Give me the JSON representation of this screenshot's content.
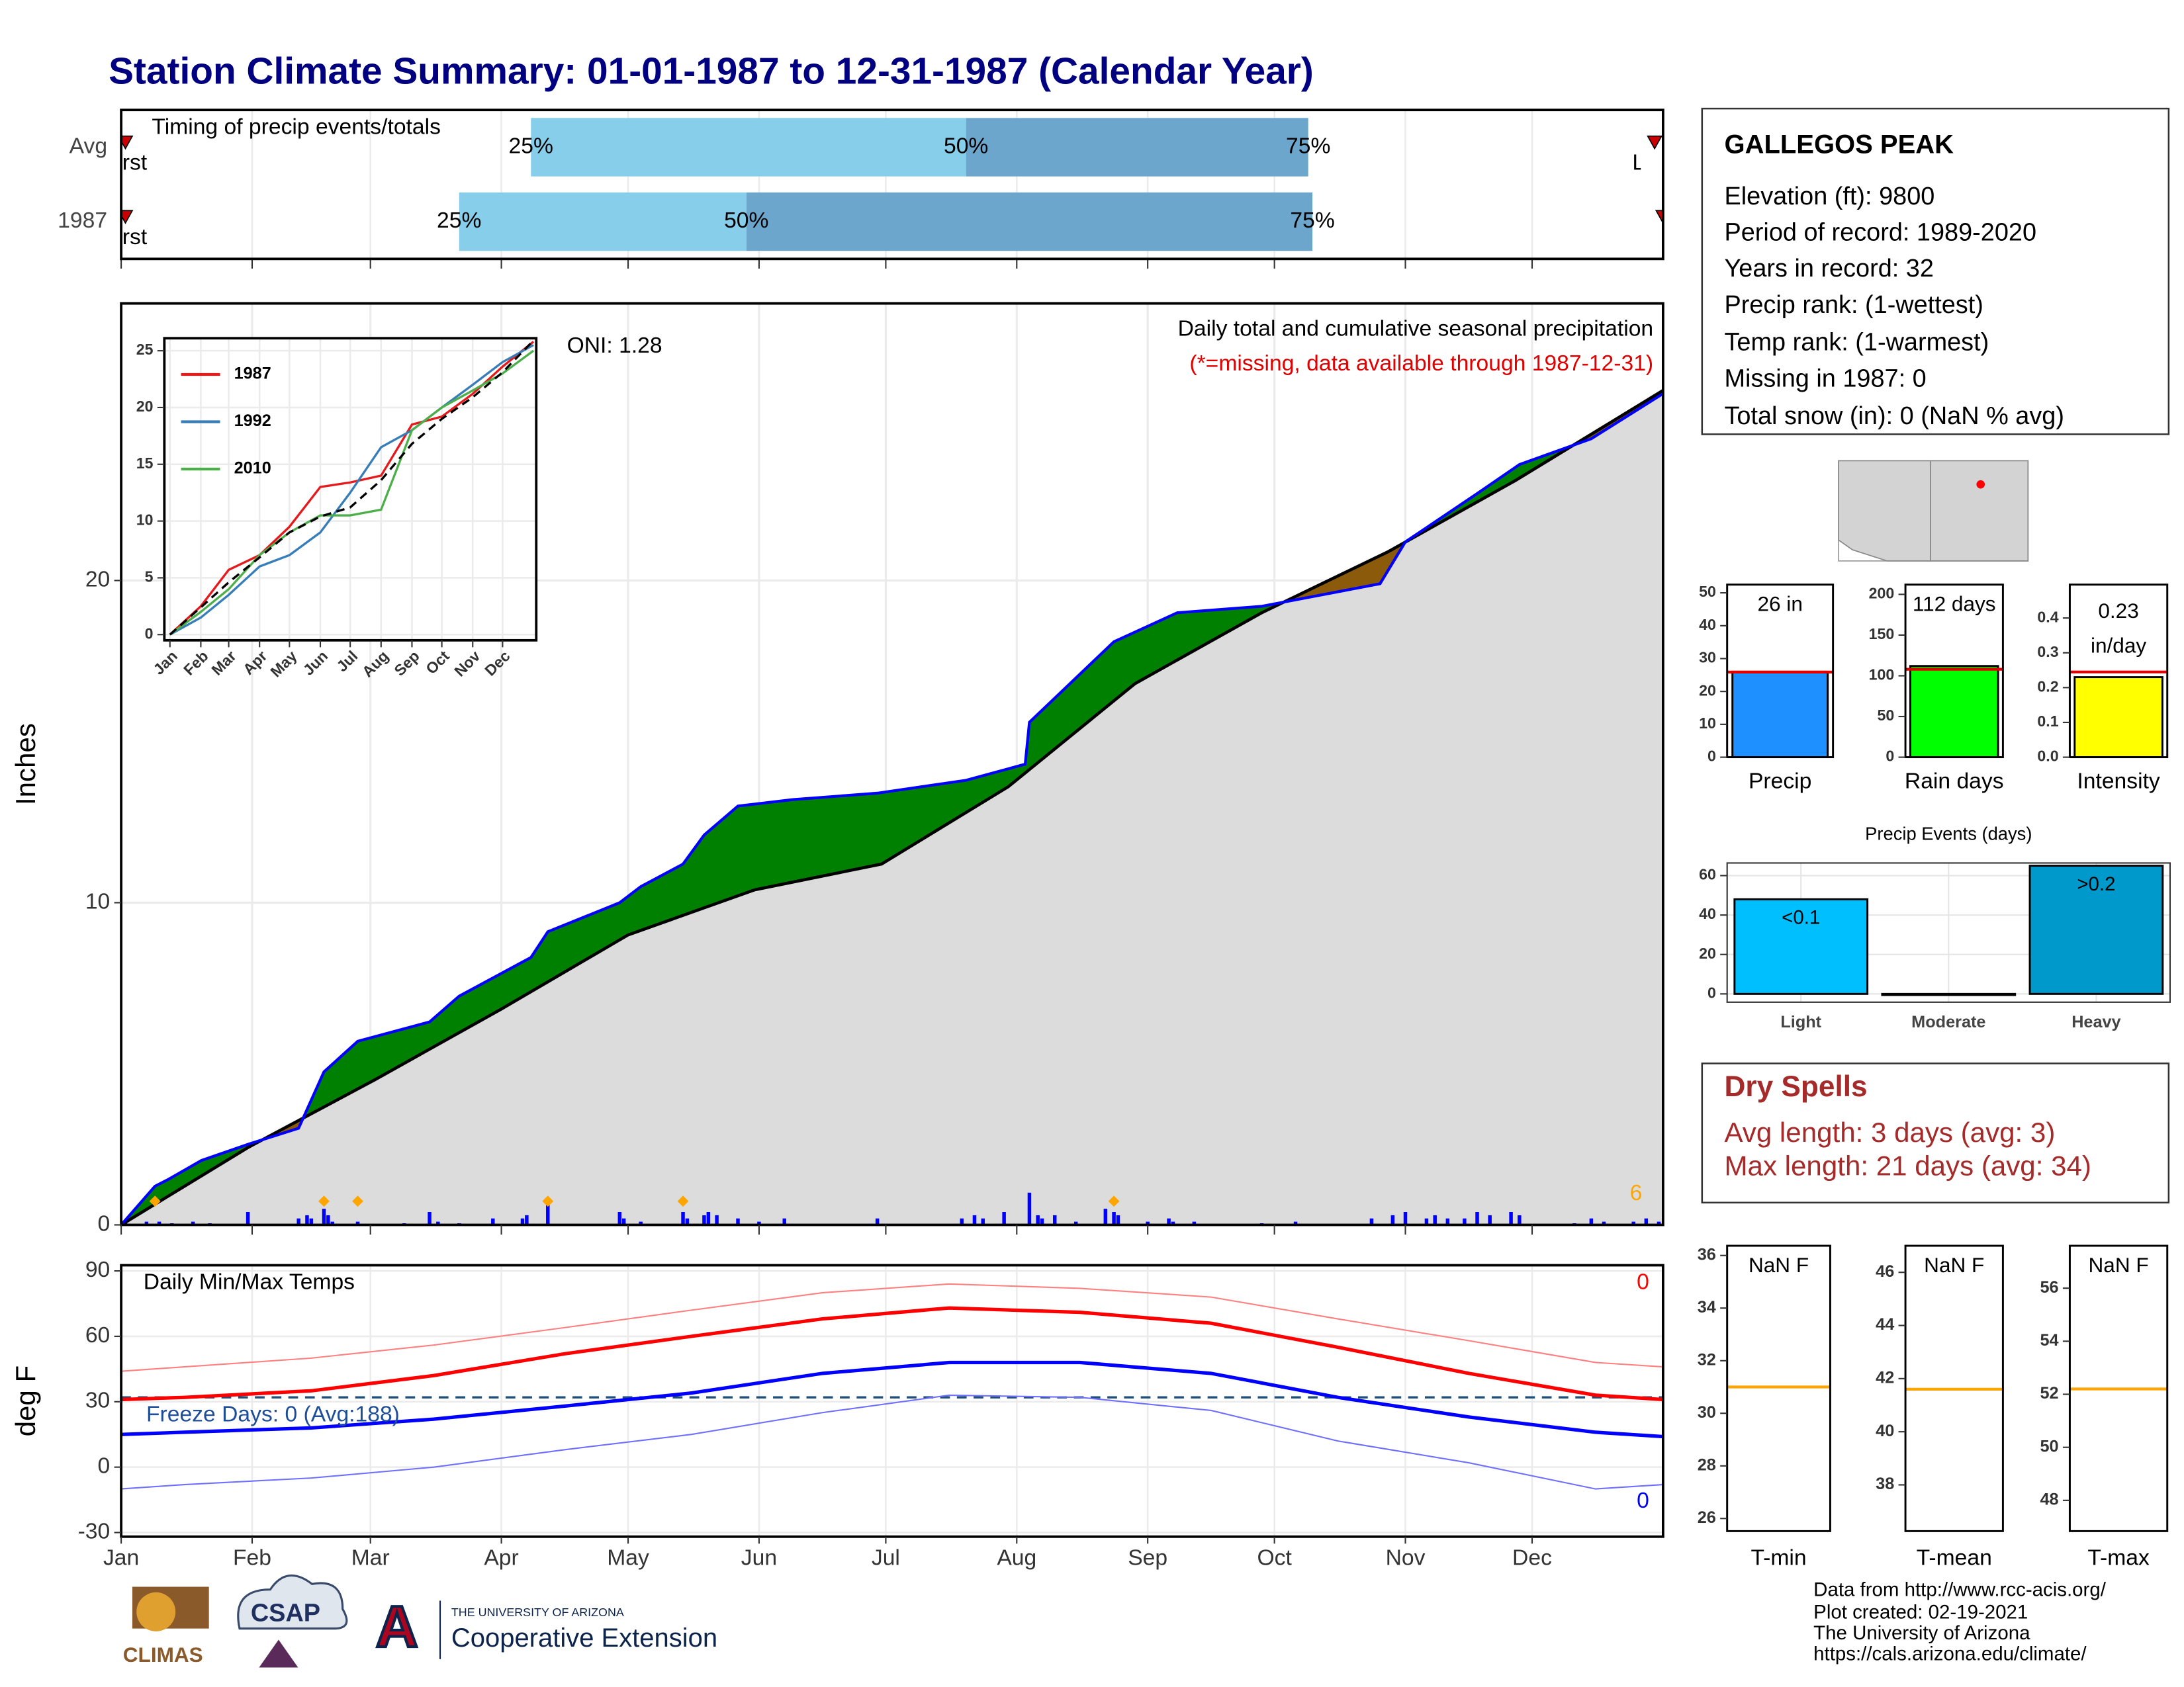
{
  "title": "Station Climate Summary: 01-01-1987 to 12-31-1987 (Calendar Year)",
  "station": {
    "name": "GALLEGOS PEAK",
    "lines": [
      "Elevation (ft): 9800",
      "Period of record: 1989-2020",
      "Years in record: 32",
      "Precip rank:  (1-wettest)",
      "Temp rank:  (1-warmest)",
      "Missing in 1987: 0",
      "Total snow (in): 0 (NaN % avg)"
    ]
  },
  "dry_spells": {
    "title": "Dry Spells",
    "lines": [
      "Avg length: 3 days (avg: 3)",
      "Max length: 21 days (avg: 34)"
    ]
  },
  "footer": [
    "Data from http://www.rcc-acis.org/",
    "Plot created: 02-19-2021",
    "The University of Arizona",
    "https://cals.arizona.edu/climate/"
  ],
  "logos": {
    "climas": "CLIMAS",
    "csap": "CSAP",
    "ua_mark": "A",
    "ua_name": "THE UNIVERSITY OF ARIZONA",
    "ua_unit": "Cooperative Extension"
  },
  "chart_data": [
    {
      "type": "timing",
      "label": "Timing of precip events/totals",
      "rows": [
        "Avg",
        "1987"
      ],
      "quantiles": [
        [
          97,
          200,
          281
        ],
        [
          80,
          148,
          282
        ]
      ],
      "quantile_labels": [
        "25%",
        "50%",
        "75%"
      ],
      "first": [
        1,
        1
      ],
      "last": [
        363,
        365
      ],
      "first_label": "First",
      "last_label": "Last",
      "colors": [
        "#87ceeb",
        "#6ca6cd"
      ],
      "marker_color": "#cc0000",
      "xlim": [
        0,
        365
      ],
      "xticks": [
        0,
        31,
        59,
        90,
        120,
        151,
        181,
        212,
        243,
        273,
        304,
        334
      ],
      "grid": true
    },
    {
      "type": "area",
      "title": "Daily total and cumulative seasonal precipitation",
      "subtitle": "(*=missing, data available through 1987-12-31)",
      "annotation": "ONI: 1.28",
      "count_label": "6",
      "ylabel": "Inches",
      "xlim": [
        0,
        365
      ],
      "xticks": [
        0,
        31,
        59,
        90,
        120,
        151,
        181,
        212,
        243,
        273,
        304,
        334
      ],
      "ylim": [
        0,
        28.6
      ],
      "yticks": [
        0,
        10,
        20
      ],
      "grid": true,
      "cumulative": {
        "color": "#0000ff",
        "x": [
          0,
          8,
          11,
          19,
          30,
          42,
          48,
          56,
          73,
          80,
          97,
          101,
          118,
          123,
          133,
          138,
          146,
          159,
          179,
          200,
          214,
          215,
          235,
          250,
          270,
          278,
          298,
          304,
          321,
          331,
          348,
          365
        ],
        "values": [
          0,
          1.2,
          1.4,
          2.0,
          2.5,
          3.0,
          4.75,
          5.7,
          6.3,
          7.1,
          8.3,
          9.1,
          10.0,
          10.5,
          11.2,
          12.1,
          13.0,
          13.2,
          13.4,
          13.8,
          14.3,
          15.6,
          18.1,
          19.0,
          19.2,
          19.4,
          19.9,
          21.2,
          22.7,
          23.6,
          24.4,
          25.8
        ]
      },
      "average": {
        "color": "#000000",
        "x": [
          0,
          30,
          60,
          90,
          120,
          150,
          180,
          210,
          240,
          270,
          300,
          330,
          365
        ],
        "values": [
          0,
          2.4,
          4.5,
          6.7,
          9.0,
          10.4,
          11.2,
          13.6,
          16.8,
          19.0,
          20.9,
          23.1,
          25.9
        ]
      },
      "surplus_color": "#008000",
      "deficit_color": "#8b5a0b",
      "under_color": "#dcdcdc",
      "daily": {
        "color": "#0000ff",
        "x": [
          1,
          6,
          9,
          12,
          17,
          21,
          30,
          42,
          44,
          45,
          48,
          49,
          50,
          56,
          67,
          73,
          75,
          80,
          88,
          95,
          96,
          101,
          118,
          119,
          123,
          133,
          134,
          138,
          139,
          141,
          146,
          151,
          157,
          179,
          199,
          202,
          204,
          209,
          215,
          217,
          218,
          221,
          226,
          233,
          235,
          236,
          243,
          248,
          249,
          254,
          270,
          278,
          296,
          301,
          304,
          309,
          311,
          314,
          318,
          321,
          324,
          329,
          331,
          344,
          348,
          351,
          358,
          361,
          364
        ],
        "values": [
          0.1,
          0.1,
          0.1,
          0.05,
          0.1,
          0.05,
          0.4,
          0.2,
          0.3,
          0.2,
          0.5,
          0.3,
          0.1,
          0.1,
          0.05,
          0.4,
          0.1,
          0.05,
          0.2,
          0.2,
          0.3,
          0.8,
          0.4,
          0.2,
          0.1,
          0.4,
          0.2,
          0.3,
          0.4,
          0.3,
          0.2,
          0.1,
          0.2,
          0.2,
          0.2,
          0.3,
          0.2,
          0.4,
          1.0,
          0.3,
          0.2,
          0.3,
          0.1,
          0.5,
          0.4,
          0.3,
          0.1,
          0.2,
          0.1,
          0.1,
          0.05,
          0.1,
          0.2,
          0.3,
          0.4,
          0.2,
          0.3,
          0.2,
          0.2,
          0.4,
          0.3,
          0.4,
          0.3,
          0.05,
          0.2,
          0.1,
          0.1,
          0.2,
          0.1
        ]
      },
      "events": {
        "color": "#ffa500",
        "x": [
          8,
          48,
          56,
          101,
          133,
          235
        ]
      }
    },
    {
      "type": "line",
      "x": [
        0,
        31,
        59,
        90,
        120,
        151,
        181,
        212,
        243,
        273,
        304,
        334,
        365
      ],
      "xlim": [
        -5.6,
        367.8
      ],
      "ylim": [
        -0.5,
        26.1
      ],
      "yticks": [
        0,
        5,
        10,
        15,
        20,
        25
      ],
      "grid": true,
      "xtick_rotation": -45,
      "xticks": [
        {
          "value": 0,
          "label": "Jan"
        },
        {
          "value": 31,
          "label": "Feb"
        },
        {
          "value": 59,
          "label": "Mar"
        },
        {
          "value": 90,
          "label": "Apr"
        },
        {
          "value": 120,
          "label": "May"
        },
        {
          "value": 151,
          "label": "Jun"
        },
        {
          "value": 181,
          "label": "Jul"
        },
        {
          "value": 212,
          "label": "Aug"
        },
        {
          "value": 243,
          "label": "Sep"
        },
        {
          "value": 273,
          "label": "Oct"
        },
        {
          "value": 304,
          "label": "Nov"
        },
        {
          "value": 334,
          "label": "Dec"
        }
      ],
      "series": [
        {
          "name": "1987",
          "color": "#e41a1c",
          "values": [
            0,
            2.5,
            5.7,
            7.0,
            9.5,
            13.0,
            13.4,
            14.0,
            18.5,
            19.2,
            21.2,
            23.6,
            25.8
          ]
        },
        {
          "name": "1992",
          "color": "#377eb8",
          "values": [
            0,
            1.5,
            3.5,
            6.0,
            7.0,
            9.0,
            12.5,
            16.5,
            18.0,
            20.0,
            22.0,
            24.0,
            25.5
          ]
        },
        {
          "name": "2010",
          "color": "#4daf4a",
          "values": [
            0,
            2.0,
            4.0,
            7.0,
            9.0,
            10.5,
            10.5,
            11.0,
            18.0,
            20.0,
            21.5,
            23.0,
            25.0
          ]
        },
        {
          "color": "#000000",
          "dashed": true,
          "values": [
            0,
            2.4,
            4.6,
            6.8,
            9.0,
            10.4,
            11.2,
            13.6,
            16.8,
            19.0,
            20.9,
            23.1,
            25.9
          ]
        }
      ]
    },
    {
      "type": "line",
      "ylabel": "deg F",
      "x": [
        0,
        15,
        45,
        74,
        105,
        135,
        166,
        196,
        227,
        258,
        288,
        319,
        349,
        365
      ],
      "xlim": [
        0,
        365
      ],
      "ylim": [
        -31.9,
        92.6
      ],
      "yticks": [
        -30,
        0,
        30,
        60,
        90
      ],
      "grid": true,
      "xticks": [
        {
          "value": 0,
          "label": "Jan"
        },
        {
          "value": 31,
          "label": "Feb"
        },
        {
          "value": 59,
          "label": "Mar"
        },
        {
          "value": 90,
          "label": "Apr"
        },
        {
          "value": 120,
          "label": "May"
        },
        {
          "value": 151,
          "label": "Jun"
        },
        {
          "value": 181,
          "label": "Jul"
        },
        {
          "value": 212,
          "label": "Aug"
        },
        {
          "value": 243,
          "label": "Sep"
        },
        {
          "value": 273,
          "label": "Oct"
        },
        {
          "value": 304,
          "label": "Nov"
        },
        {
          "value": 334,
          "label": "Dec"
        }
      ],
      "threshold": 32,
      "threshold_color": "#1f4e79",
      "annotations": [
        {
          "text": "Daily Min/Max Temps",
          "color": "#000000"
        },
        {
          "text": "Freeze Days: 0 (Avg:188)",
          "color": "#1f4e99"
        },
        {
          "text": "0",
          "color": "#ff0000"
        },
        {
          "text": "0",
          "color": "#0000ff"
        }
      ],
      "series": [
        {
          "color": "#ff8080",
          "width": 1,
          "values": [
            44,
            46,
            50,
            56,
            64,
            72,
            80,
            84,
            82,
            78,
            68,
            58,
            48,
            46
          ]
        },
        {
          "color": "#ff0000",
          "width": 2.5,
          "values": [
            31,
            32,
            35,
            42,
            52,
            60,
            68,
            73,
            71,
            66,
            55,
            43,
            33,
            31
          ]
        },
        {
          "color": "#0000ff",
          "width": 2.5,
          "values": [
            15,
            16,
            18,
            22,
            28,
            34,
            43,
            48,
            48,
            43,
            32,
            23,
            16,
            14
          ]
        },
        {
          "color": "#7070ff",
          "width": 1,
          "values": [
            -10,
            -8,
            -5,
            0,
            8,
            15,
            25,
            33,
            32,
            26,
            12,
            2,
            -10,
            -8
          ]
        }
      ]
    },
    {
      "type": "bar",
      "categories": [
        "Precip"
      ],
      "values": [
        26
      ],
      "value_labels": [
        "26 in"
      ],
      "average": [
        25.9
      ],
      "average_color": "#e00000",
      "color": "#1e90ff",
      "ylim": [
        0,
        52.5
      ],
      "yticks": [
        0,
        10,
        20,
        30,
        40,
        50
      ]
    },
    {
      "type": "bar",
      "categories": [
        "Rain days"
      ],
      "values": [
        112
      ],
      "value_labels": [
        "112 days"
      ],
      "average": [
        108
      ],
      "average_color": "#e00000",
      "color": "#00ff00",
      "ylim": [
        0,
        212
      ],
      "yticks": [
        0,
        50,
        100,
        150,
        200
      ]
    },
    {
      "type": "bar",
      "categories": [
        "Intensity"
      ],
      "values": [
        0.23
      ],
      "value_labels": [
        [
          "0.23",
          "in/day"
        ]
      ],
      "average": [
        0.245
      ],
      "average_color": "#e00000",
      "color": "#ffff00",
      "ylim": [
        0,
        0.496
      ],
      "yticks": [
        {
          "value": 0,
          "label": "0.0"
        },
        0.1,
        0.2,
        0.3,
        0.4
      ]
    },
    {
      "type": "bar",
      "title": "Precip Events (days)",
      "categories": [
        "Light",
        "Moderate",
        "Heavy"
      ],
      "values": [
        48,
        0,
        65
      ],
      "annotations": [
        {
          "index": 0,
          "text": "<0.1"
        },
        {
          "index": 2,
          "text": ">0.2"
        }
      ],
      "colors": [
        "#00bfff",
        "#00bfff",
        "#0099cc"
      ],
      "ylim": [
        -4.2,
        66.4
      ],
      "yticks": [
        0,
        20,
        40,
        60
      ],
      "grid": true
    },
    {
      "type": "level",
      "label": "NaN F",
      "xlabel": "T-min",
      "line": 31,
      "line_color": "#ffa500",
      "ylim": [
        25.52,
        36.37
      ],
      "yticks": [
        26,
        28,
        30,
        32,
        34,
        36
      ]
    },
    {
      "type": "level",
      "label": "NaN F",
      "xlabel": "T-mean",
      "line": 41.6,
      "line_color": "#ffa500",
      "ylim": [
        36.26,
        47.0
      ],
      "yticks": [
        38,
        40,
        42,
        44,
        46
      ]
    },
    {
      "type": "level",
      "label": "NaN F",
      "xlabel": "T-max",
      "line": 52.2,
      "line_color": "#ffa500",
      "ylim": [
        46.84,
        57.6
      ],
      "yticks": [
        48,
        50,
        52,
        54,
        56
      ]
    }
  ]
}
